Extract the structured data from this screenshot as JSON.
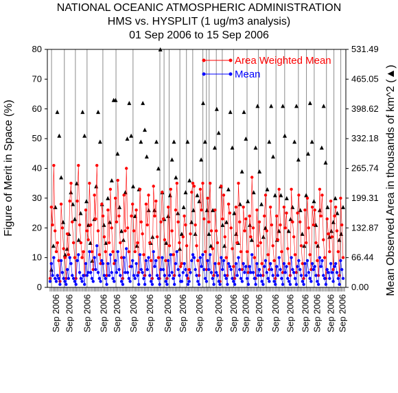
{
  "title": {
    "line1": "NATIONAL OCEANIC ATMOSPHERIC ADMINISTRATION",
    "line2": "HMS vs. HYSPLIT (1 ug/m3 analysis)",
    "line3": "01 Sep 2006 to 15 Sep 2006"
  },
  "chart_data": {
    "type": "line",
    "ylabel": "Figure of Merit in Space (%)",
    "y2label": "Mean Observed Area in thousands of km^2 (▲)",
    "ylim": [
      0,
      80
    ],
    "y2lim": [
      0,
      531.49
    ],
    "yticks": [
      "0",
      "10",
      "20",
      "30",
      "40",
      "50",
      "60",
      "70",
      "80"
    ],
    "y2ticks": [
      "0.00",
      "66.44",
      "132.87",
      "199.31",
      "265.74",
      "332.18",
      "398.62",
      "465.05",
      "531.49"
    ],
    "xtick_label": "Sep 2006",
    "xtick_label_count": 20,
    "legend": {
      "position": "top-right"
    },
    "colors": {
      "awm": "#ff0000",
      "mean": "#0000ff",
      "area": "#000000"
    },
    "series": [
      {
        "name": "Area Weighted Mean",
        "values": [
          3,
          27,
          21,
          41,
          19,
          12,
          15,
          9,
          2,
          28,
          20,
          13,
          10,
          3,
          18,
          11,
          29,
          35,
          22,
          15,
          10,
          3,
          29,
          41,
          21,
          15,
          10,
          12,
          4,
          26,
          19,
          16,
          35,
          21,
          12,
          6,
          31,
          23,
          41,
          19,
          11,
          8,
          28,
          24,
          17,
          12,
          4,
          26,
          15,
          33,
          20,
          12,
          8,
          30,
          22,
          36,
          24,
          15,
          10,
          3,
          31,
          19,
          40,
          20,
          12,
          7,
          24,
          28,
          19,
          12,
          26,
          15,
          5,
          33,
          22,
          18,
          11,
          4,
          28,
          21,
          31,
          15,
          9,
          3,
          34,
          24,
          29,
          17,
          10,
          3,
          22,
          32,
          23,
          16,
          9,
          3,
          27,
          14,
          33,
          19,
          11,
          4,
          26,
          35,
          22,
          15,
          7,
          8,
          17,
          24,
          21,
          14,
          3,
          6,
          18,
          32,
          35,
          34,
          21,
          14,
          9,
          4,
          33,
          26,
          35,
          23,
          12,
          6,
          30,
          22,
          35,
          19,
          13,
          4,
          26,
          19,
          15,
          8,
          2,
          34,
          23,
          31,
          17,
          10,
          4,
          28,
          25,
          20,
          13,
          7,
          3,
          27,
          15,
          35,
          22,
          12,
          6,
          27,
          19,
          23,
          12,
          5,
          24,
          17,
          37,
          20,
          10,
          3,
          26,
          14,
          22,
          15,
          8,
          4,
          24,
          31,
          19,
          11,
          6,
          27,
          21,
          14,
          9,
          3,
          24,
          16,
          33,
          21,
          12,
          5,
          27,
          20,
          25,
          13,
          8,
          4,
          33,
          22,
          17,
          11,
          5,
          25,
          31,
          22,
          14,
          8,
          3,
          26,
          15,
          30,
          20,
          11,
          6,
          27,
          21,
          26,
          15,
          9,
          4,
          33,
          24,
          31,
          16,
          10,
          3,
          23,
          18,
          12,
          29,
          17,
          6,
          24,
          27,
          19,
          12,
          4,
          30,
          21,
          10
        ],
        "notes": "approximate dense trace, ~5 samples per day"
      },
      {
        "name": "Mean",
        "values": [
          2,
          8,
          4,
          10,
          3,
          2,
          4,
          3,
          1,
          9,
          5,
          3,
          2,
          1,
          6,
          3,
          10,
          8,
          4,
          3,
          2,
          1,
          9,
          11,
          5,
          3,
          2,
          4,
          1,
          8,
          4,
          5,
          12,
          5,
          3,
          2,
          10,
          6,
          14,
          5,
          3,
          2,
          9,
          8,
          4,
          3,
          1,
          8,
          4,
          11,
          5,
          3,
          2,
          9,
          5,
          12,
          6,
          4,
          2,
          1,
          10,
          5,
          13,
          5,
          3,
          2,
          7,
          9,
          4,
          3,
          8,
          4,
          1,
          11,
          6,
          5,
          3,
          1,
          9,
          6,
          10,
          4,
          2,
          1,
          12,
          7,
          9,
          4,
          3,
          1,
          6,
          10,
          6,
          4,
          2,
          1,
          9,
          4,
          11,
          5,
          3,
          1,
          8,
          12,
          6,
          4,
          2,
          2,
          5,
          8,
          6,
          4,
          1,
          2,
          5,
          9,
          11,
          10,
          6,
          4,
          2,
          1,
          10,
          7,
          11,
          6,
          3,
          2,
          9,
          6,
          11,
          5,
          3,
          1,
          8,
          5,
          4,
          2,
          1,
          10,
          6,
          9,
          4,
          3,
          1,
          8,
          7,
          6,
          3,
          2,
          1,
          8,
          4,
          10,
          6,
          3,
          2,
          8,
          5,
          7,
          3,
          1,
          7,
          5,
          11,
          5,
          3,
          1,
          8,
          4,
          6,
          4,
          2,
          1,
          7,
          9,
          5,
          3,
          2,
          8,
          6,
          4,
          2,
          1,
          7,
          4,
          10,
          6,
          3,
          1,
          8,
          5,
          7,
          3,
          2,
          1,
          10,
          6,
          5,
          3,
          1,
          7,
          9,
          6,
          4,
          2,
          1,
          8,
          4,
          9,
          5,
          3,
          2,
          8,
          6,
          7,
          4,
          2,
          1,
          10,
          7,
          9,
          4,
          3,
          1,
          6,
          5,
          3,
          8,
          5,
          2,
          7,
          8,
          5,
          3,
          1,
          9,
          6,
          3
        ],
        "notes": "approximate dense trace, ~5 samples per day"
      },
      {
        "name": "Mean Observed Area",
        "axis": "right",
        "values_pct_scale": [
          6,
          14,
          27,
          59,
          51,
          37,
          22,
          11,
          13,
          18,
          32,
          28,
          23,
          35,
          16,
          25,
          59,
          51,
          29,
          21,
          15,
          9,
          23,
          34,
          59,
          49,
          28,
          21,
          15,
          30,
          22,
          36,
          63,
          63,
          45,
          27,
          19,
          16,
          32,
          50,
          62,
          51,
          34,
          24,
          14,
          33,
          49,
          62,
          53,
          44,
          26,
          15,
          17,
          26,
          49,
          40,
          80,
          32,
          23,
          15,
          24,
          31,
          43,
          49,
          37,
          25,
          13,
          18,
          27,
          32,
          49,
          36,
          22,
          26,
          18,
          31,
          29,
          43,
          62,
          49,
          26,
          18,
          14,
          26,
          47,
          60,
          52,
          34,
          21,
          14,
          22,
          33,
          59,
          47,
          25,
          18,
          15,
          28,
          39,
          59,
          50,
          29,
          21,
          16,
          32,
          47,
          61,
          39,
          28,
          17,
          20,
          33,
          49,
          61,
          44,
          31,
          16,
          19,
          31,
          61,
          51,
          30,
          19,
          23,
          27,
          49,
          61,
          43,
          26,
          18,
          14,
          31,
          45,
          62,
          49,
          29,
          21,
          14,
          26,
          47,
          61,
          42,
          27,
          17,
          19,
          22,
          30,
          25,
          16,
          18,
          27
        ],
        "notes": "black triangle markers plotted against right axis; values expressed on left 0-80 scale"
      }
    ]
  }
}
